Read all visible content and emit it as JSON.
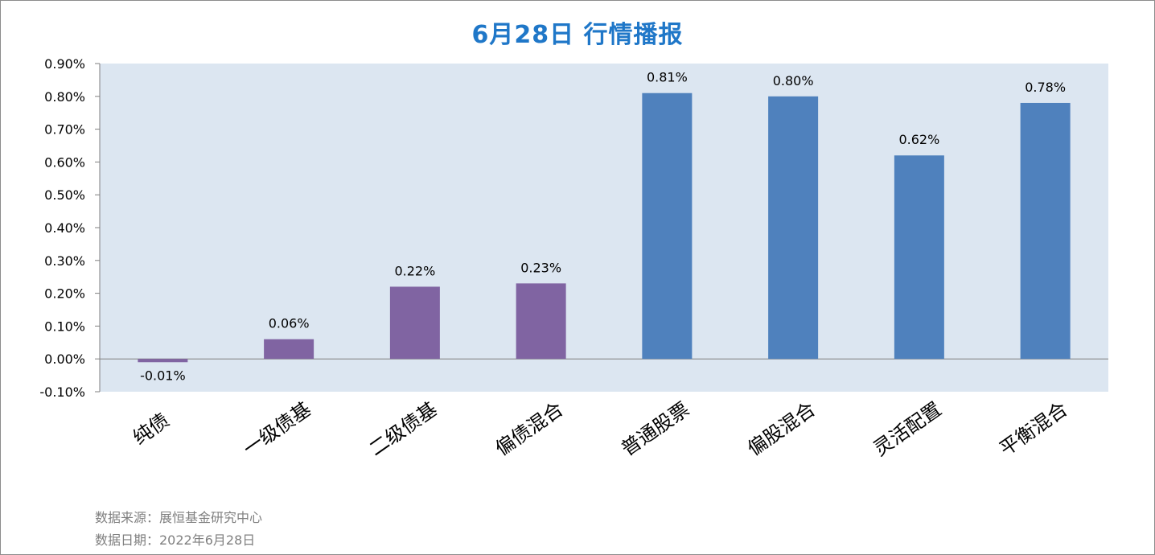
{
  "title": "6月28日   行情播报",
  "footer": {
    "source": "数据来源：展恒基金研究中心",
    "date": "数据日期：2022年6月28日"
  },
  "colors": {
    "plot_bg": "#dce6f1",
    "bond_bar": "#8064a2",
    "equity_bar": "#4f81bd",
    "title": "#1f77c8"
  },
  "chart_data": {
    "type": "bar",
    "categories": [
      "纯债",
      "一级债基",
      "二级债基",
      "偏债混合",
      "普通股票",
      "偏股混合",
      "灵活配置",
      "平衡混合"
    ],
    "values": [
      -0.01,
      0.06,
      0.22,
      0.23,
      0.81,
      0.8,
      0.62,
      0.78
    ],
    "value_labels": [
      "-0.01%",
      "0.06%",
      "0.22%",
      "0.23%",
      "0.81%",
      "0.80%",
      "0.62%",
      "0.78%"
    ],
    "bar_groups": [
      "bond",
      "bond",
      "bond",
      "bond",
      "equity",
      "equity",
      "equity",
      "equity"
    ],
    "y_ticks": [
      -0.1,
      0.0,
      0.1,
      0.2,
      0.3,
      0.4,
      0.5,
      0.6,
      0.7,
      0.8,
      0.9
    ],
    "y_tick_labels": [
      "-0.10%",
      "0.00%",
      "0.10%",
      "0.20%",
      "0.30%",
      "0.40%",
      "0.50%",
      "0.60%",
      "0.70%",
      "0.80%",
      "0.90%"
    ],
    "ylim": [
      -0.1,
      0.9
    ],
    "unit": "%",
    "grid": false,
    "legend": "none"
  }
}
